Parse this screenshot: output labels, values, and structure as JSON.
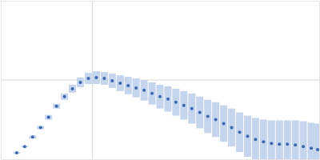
{
  "chart_data": {
    "type": "scatter",
    "x": [
      0.2,
      0.3,
      0.4,
      0.5,
      0.6,
      0.7,
      0.8,
      0.9,
      1.0,
      1.1,
      1.2,
      1.3,
      1.4,
      1.5,
      1.6,
      1.7,
      1.8,
      1.9,
      2.0,
      2.1,
      2.2,
      2.3,
      2.4,
      2.5,
      2.6,
      2.7,
      2.8,
      2.9,
      3.0,
      3.1,
      3.2,
      3.3,
      3.4,
      3.5,
      3.6,
      3.7,
      3.8,
      3.9,
      3.98
    ],
    "values": [
      0.08,
      0.16,
      0.28,
      0.4,
      0.53,
      0.67,
      0.79,
      0.89,
      0.97,
      1.02,
      1.03,
      1.02,
      0.99,
      0.96,
      0.93,
      0.9,
      0.87,
      0.83,
      0.79,
      0.76,
      0.72,
      0.68,
      0.64,
      0.59,
      0.54,
      0.5,
      0.45,
      0.4,
      0.34,
      0.29,
      0.25,
      0.22,
      0.2,
      0.19,
      0.19,
      0.18,
      0.16,
      0.14,
      0.12
    ],
    "errors": [
      0.01,
      0.01,
      0.02,
      0.02,
      0.03,
      0.03,
      0.04,
      0.05,
      0.06,
      0.07,
      0.08,
      0.08,
      0.09,
      0.1,
      0.11,
      0.12,
      0.13,
      0.14,
      0.15,
      0.16,
      0.17,
      0.18,
      0.19,
      0.2,
      0.21,
      0.22,
      0.23,
      0.24,
      0.25,
      0.26,
      0.27,
      0.28,
      0.29,
      0.3,
      0.3,
      0.31,
      0.32,
      0.32,
      0.33
    ],
    "color": "#3a66b0",
    "marker": "circle",
    "xlim": [
      0,
      4
    ],
    "xticks": [
      1.15
    ],
    "ylim": [
      0,
      2
    ],
    "yticks": [
      1
    ],
    "grid": true,
    "tick_labels": false
  }
}
